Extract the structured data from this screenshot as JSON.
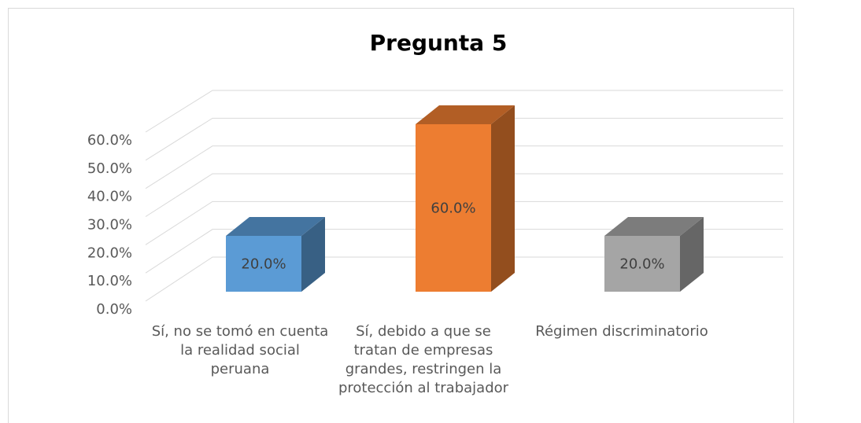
{
  "chart_data": {
    "type": "bar3d",
    "title": "Pregunta 5",
    "categories": [
      "Sí, no se tomó en cuenta la realidad social peruana",
      "Sí, debido a que se tratan de empresas grandes, restringen la protección al trabajador",
      "Régimen discriminatorio"
    ],
    "values": [
      20,
      60,
      20
    ],
    "value_labels": [
      "20.0%",
      "60.0%",
      "20.0%"
    ],
    "colors": [
      "#5b9bd5",
      "#ed7d31",
      "#a5a5a5"
    ],
    "ylim": [
      0,
      60
    ],
    "yticks": [
      {
        "value": 0,
        "label": "0.0%"
      },
      {
        "value": 10,
        "label": "10.0%"
      },
      {
        "value": 20,
        "label": "20.0%"
      },
      {
        "value": 30,
        "label": "30.0%"
      },
      {
        "value": 40,
        "label": "40.0%"
      },
      {
        "value": 50,
        "label": "50.0%"
      },
      {
        "value": 60,
        "label": "60.0%"
      }
    ],
    "grid": true
  }
}
